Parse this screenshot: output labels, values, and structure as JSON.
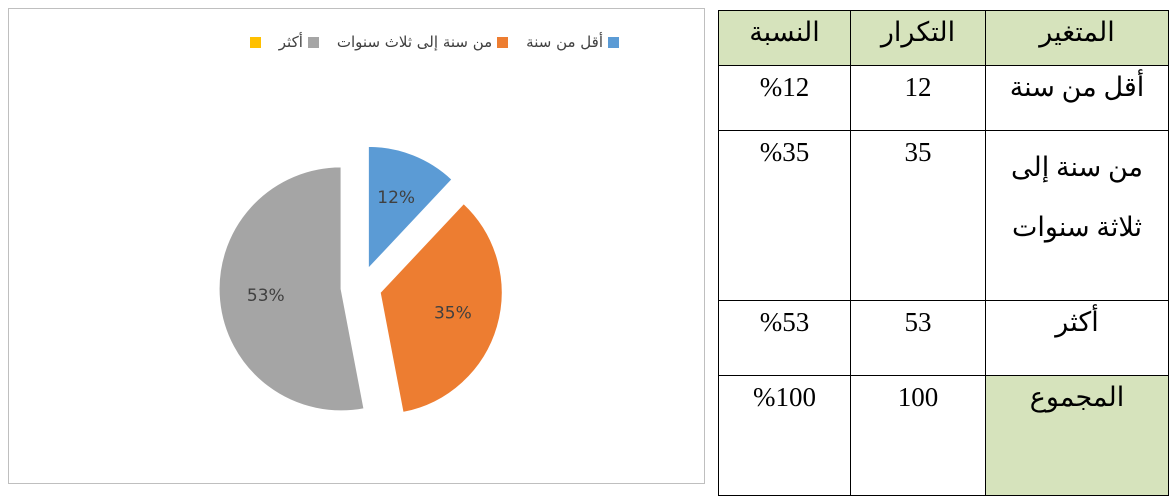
{
  "chart_data": {
    "type": "pie",
    "categories": [
      "أقل من سنة",
      "من سنة إلى ثلاث سنوات",
      "أكثر",
      null
    ],
    "values": [
      12,
      35,
      53,
      null
    ],
    "value_labels": [
      "12%",
      "35%",
      "53%",
      null
    ],
    "colors": [
      "#5b9bd5",
      "#ed7d31",
      "#a5a5a5",
      "#ffc000"
    ]
  },
  "table": {
    "header": [
      "النسبة",
      "التكرار",
      "المتغير"
    ],
    "rows": [
      [
        "%12",
        "12",
        "أقل من سنة"
      ],
      [
        "%35",
        "35",
        "من سنة إلى ثلاثة سنوات"
      ],
      [
        "%53",
        "53",
        "أكثر"
      ],
      [
        "%100",
        "100",
        "المجموع"
      ]
    ]
  }
}
